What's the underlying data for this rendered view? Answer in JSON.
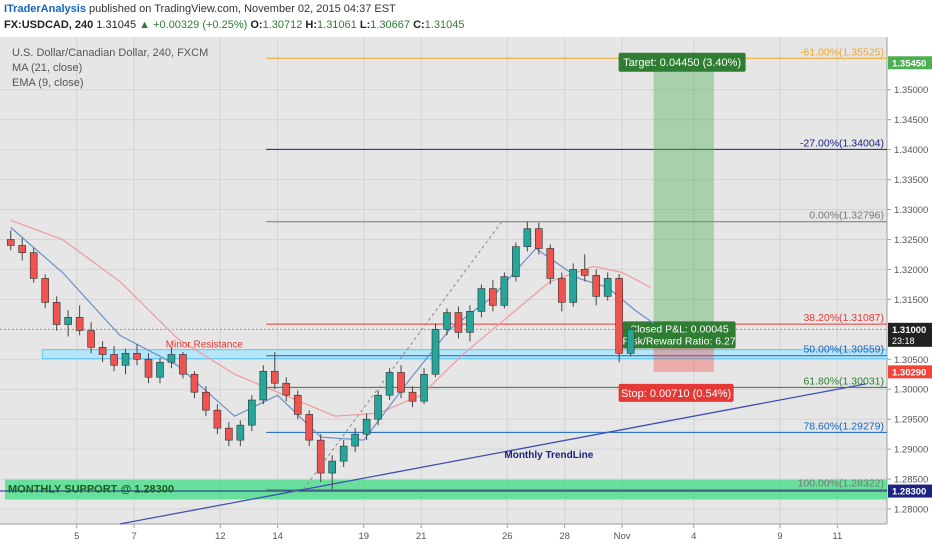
{
  "header": {
    "author": "ITraderAnalysis",
    "published": "published on TradingView.com, November 02, 2015 04:37 EST",
    "symbol": "FX:USDCAD, 240",
    "last": "1.31045",
    "change": "+0.00329 (+0.25%)",
    "o_label": "O:",
    "o": "1.30712",
    "h_label": "H:",
    "h": "1.31061",
    "l_label": "L:",
    "l": "1.30667",
    "c_label": "C:",
    "c": "1.31045"
  },
  "legend": {
    "name": "U.S. Dollar/Canadian Dollar, 240, FXCM",
    "ma": "MA (21, close)",
    "ema": "EMA (9, close)"
  },
  "colors": {
    "bull": "#26a69a",
    "bear": "#ef5350",
    "ma": "#ef9a9a",
    "ema": "#6a8fc7",
    "target": "#4caf50",
    "stop": "#f44336",
    "support": "#3ddc84",
    "trendline": "#3f51b5",
    "current": "#000000"
  },
  "chart_data": {
    "type": "candlestick",
    "ylim": [
      1.2775,
      1.3588
    ],
    "xlim": [
      0,
      29
    ],
    "x_ticks": [
      {
        "x": 2.5,
        "label": "5"
      },
      {
        "x": 4.5,
        "label": "7"
      },
      {
        "x": 7.5,
        "label": "12"
      },
      {
        "x": 9.5,
        "label": "14"
      },
      {
        "x": 12.5,
        "label": "19"
      },
      {
        "x": 14.5,
        "label": "21"
      },
      {
        "x": 17.5,
        "label": "26"
      },
      {
        "x": 19.5,
        "label": "28"
      },
      {
        "x": 21.5,
        "label": "Nov"
      },
      {
        "x": 24.0,
        "label": "4"
      },
      {
        "x": 27.0,
        "label": "9"
      },
      {
        "x": 29.0,
        "label": "11"
      }
    ],
    "y_ticks": [
      "1.35000",
      "1.34500",
      "1.34000",
      "1.33500",
      "1.33000",
      "1.32500",
      "1.32000",
      "1.31500",
      "1.30500",
      "1.30000",
      "1.29500",
      "1.29000",
      "1.28500",
      "1.28000"
    ],
    "price_tags": [
      {
        "price": 1.3545,
        "label": "1.35450",
        "color": "#4caf50"
      },
      {
        "price": 1.31,
        "label": "1.31000",
        "color": "#222222",
        "sub": "23:18"
      },
      {
        "price": 1.3029,
        "label": "1.30290",
        "color": "#f44336"
      },
      {
        "price": 1.283,
        "label": "1.28300",
        "color": "#1a237e"
      }
    ],
    "fibonacci": [
      {
        "level": "-61.00%",
        "price": 1.35525,
        "label": "-61.00%(1.35525)",
        "color": "#f5a623"
      },
      {
        "level": "-27.00%",
        "price": 1.34004,
        "label": "-27.00%(1.34004)",
        "color": "#1a237e"
      },
      {
        "level": "0.00%",
        "price": 1.32796,
        "label": "0.00%(1.32796)",
        "color": "#777777"
      },
      {
        "level": "38.20%",
        "price": 1.31087,
        "label": "38.20%(1.31087)",
        "color": "#e53935"
      },
      {
        "level": "50.00%",
        "price": 1.30559,
        "label": "50.00%(1.30559)",
        "color": "#1565c0"
      },
      {
        "level": "61.80%",
        "price": 1.30031,
        "label": "61.80%(1.30031)",
        "color": "#2e7d32"
      },
      {
        "level": "78.60%",
        "price": 1.29279,
        "label": "78.60%(1.29279)",
        "color": "#1565c0"
      },
      {
        "level": "100.00%",
        "price": 1.28322,
        "label": "100.00%(1.28322)",
        "color": "#777777"
      }
    ],
    "annotations": {
      "minor_resistance": "Minor Resistance",
      "monthly_trendline": "Monthly TrendLine",
      "monthly_support": "MONTHLY SUPPORT @ 1.28300",
      "target": "Target: 0.04450 (3.40%)",
      "closed_pnl": "Closed P&L: 0.00045",
      "risk_reward": "Risk/Reward Ratio: 6.27",
      "stop": "Stop: 0.00710 (0.54%)"
    },
    "position": {
      "entry": 1.31,
      "target": 1.3545,
      "stop": 1.3029,
      "x_start": 22.6,
      "x_end": 24.7
    },
    "support_zone": [
      1.2816,
      1.2849
    ],
    "resistance_zone": [
      1.3051,
      1.3066
    ],
    "trendline": {
      "x1": 4.0,
      "p1": 1.2775,
      "x2": 30.0,
      "p2": 1.3009
    },
    "dashed_line": {
      "x1": 10.4,
      "p1": 1.2833,
      "x2": 17.3,
      "p2": 1.3279
    },
    "candles": [
      {
        "x": 0.2,
        "o": 1.325,
        "h": 1.3265,
        "l": 1.3232,
        "c": 1.324
      },
      {
        "x": 0.6,
        "o": 1.324,
        "h": 1.3252,
        "l": 1.3215,
        "c": 1.3228
      },
      {
        "x": 1.0,
        "o": 1.3228,
        "h": 1.3236,
        "l": 1.3178,
        "c": 1.3185
      },
      {
        "x": 1.4,
        "o": 1.3185,
        "h": 1.3192,
        "l": 1.3135,
        "c": 1.3145
      },
      {
        "x": 1.8,
        "o": 1.3145,
        "h": 1.3155,
        "l": 1.3098,
        "c": 1.3108
      },
      {
        "x": 2.2,
        "o": 1.3108,
        "h": 1.3132,
        "l": 1.3088,
        "c": 1.312
      },
      {
        "x": 2.6,
        "o": 1.312,
        "h": 1.314,
        "l": 1.309,
        "c": 1.3098
      },
      {
        "x": 3.0,
        "o": 1.3098,
        "h": 1.3112,
        "l": 1.306,
        "c": 1.307
      },
      {
        "x": 3.4,
        "o": 1.307,
        "h": 1.308,
        "l": 1.3045,
        "c": 1.3058
      },
      {
        "x": 3.8,
        "o": 1.3058,
        "h": 1.3072,
        "l": 1.303,
        "c": 1.304
      },
      {
        "x": 4.2,
        "o": 1.304,
        "h": 1.3068,
        "l": 1.3025,
        "c": 1.306
      },
      {
        "x": 4.6,
        "o": 1.306,
        "h": 1.3075,
        "l": 1.304,
        "c": 1.305
      },
      {
        "x": 5.0,
        "o": 1.305,
        "h": 1.306,
        "l": 1.301,
        "c": 1.302
      },
      {
        "x": 5.4,
        "o": 1.302,
        "h": 1.3052,
        "l": 1.301,
        "c": 1.3045
      },
      {
        "x": 5.8,
        "o": 1.3045,
        "h": 1.307,
        "l": 1.3035,
        "c": 1.3058
      },
      {
        "x": 6.2,
        "o": 1.3058,
        "h": 1.3062,
        "l": 1.3018,
        "c": 1.3025
      },
      {
        "x": 6.6,
        "o": 1.3025,
        "h": 1.303,
        "l": 1.2985,
        "c": 1.2995
      },
      {
        "x": 7.0,
        "o": 1.2995,
        "h": 1.3005,
        "l": 1.2955,
        "c": 1.2965
      },
      {
        "x": 7.4,
        "o": 1.2965,
        "h": 1.2975,
        "l": 1.2925,
        "c": 1.2935
      },
      {
        "x": 7.8,
        "o": 1.2935,
        "h": 1.2945,
        "l": 1.2905,
        "c": 1.2915
      },
      {
        "x": 8.2,
        "o": 1.2915,
        "h": 1.2948,
        "l": 1.2905,
        "c": 1.294
      },
      {
        "x": 8.6,
        "o": 1.294,
        "h": 1.299,
        "l": 1.293,
        "c": 1.2982
      },
      {
        "x": 9.0,
        "o": 1.2982,
        "h": 1.304,
        "l": 1.2975,
        "c": 1.303
      },
      {
        "x": 9.4,
        "o": 1.303,
        "h": 1.3062,
        "l": 1.3,
        "c": 1.301
      },
      {
        "x": 9.8,
        "o": 1.301,
        "h": 1.302,
        "l": 1.298,
        "c": 1.299
      },
      {
        "x": 10.2,
        "o": 1.299,
        "h": 1.2998,
        "l": 1.295,
        "c": 1.2958
      },
      {
        "x": 10.6,
        "o": 1.2958,
        "h": 1.2965,
        "l": 1.2905,
        "c": 1.2915
      },
      {
        "x": 11.0,
        "o": 1.2915,
        "h": 1.2925,
        "l": 1.2845,
        "c": 1.286
      },
      {
        "x": 11.4,
        "o": 1.286,
        "h": 1.289,
        "l": 1.2833,
        "c": 1.288
      },
      {
        "x": 11.8,
        "o": 1.288,
        "h": 1.2915,
        "l": 1.287,
        "c": 1.2905
      },
      {
        "x": 12.2,
        "o": 1.2905,
        "h": 1.2935,
        "l": 1.2895,
        "c": 1.2925
      },
      {
        "x": 12.6,
        "o": 1.2925,
        "h": 1.296,
        "l": 1.2915,
        "c": 1.295
      },
      {
        "x": 13.0,
        "o": 1.295,
        "h": 1.2998,
        "l": 1.294,
        "c": 1.299
      },
      {
        "x": 13.4,
        "o": 1.299,
        "h": 1.3035,
        "l": 1.2982,
        "c": 1.3028
      },
      {
        "x": 13.8,
        "o": 1.3028,
        "h": 1.304,
        "l": 1.2985,
        "c": 1.2995
      },
      {
        "x": 14.2,
        "o": 1.2995,
        "h": 1.3005,
        "l": 1.297,
        "c": 1.298
      },
      {
        "x": 14.6,
        "o": 1.298,
        "h": 1.3035,
        "l": 1.2975,
        "c": 1.3025
      },
      {
        "x": 15.0,
        "o": 1.3025,
        "h": 1.311,
        "l": 1.302,
        "c": 1.31
      },
      {
        "x": 15.4,
        "o": 1.31,
        "h": 1.3135,
        "l": 1.309,
        "c": 1.3128
      },
      {
        "x": 15.8,
        "o": 1.3128,
        "h": 1.3138,
        "l": 1.3085,
        "c": 1.3095
      },
      {
        "x": 16.2,
        "o": 1.3095,
        "h": 1.314,
        "l": 1.308,
        "c": 1.313
      },
      {
        "x": 16.6,
        "o": 1.313,
        "h": 1.3175,
        "l": 1.312,
        "c": 1.3168
      },
      {
        "x": 17.0,
        "o": 1.3168,
        "h": 1.3182,
        "l": 1.313,
        "c": 1.314
      },
      {
        "x": 17.4,
        "o": 1.314,
        "h": 1.3195,
        "l": 1.3135,
        "c": 1.3188
      },
      {
        "x": 17.8,
        "o": 1.3188,
        "h": 1.3245,
        "l": 1.318,
        "c": 1.3238
      },
      {
        "x": 18.2,
        "o": 1.3238,
        "h": 1.328,
        "l": 1.323,
        "c": 1.3268
      },
      {
        "x": 18.6,
        "o": 1.3268,
        "h": 1.3278,
        "l": 1.3225,
        "c": 1.3235
      },
      {
        "x": 19.0,
        "o": 1.3235,
        "h": 1.3242,
        "l": 1.3175,
        "c": 1.3185
      },
      {
        "x": 19.4,
        "o": 1.3185,
        "h": 1.3195,
        "l": 1.313,
        "c": 1.3145
      },
      {
        "x": 19.8,
        "o": 1.3145,
        "h": 1.321,
        "l": 1.3138,
        "c": 1.32
      },
      {
        "x": 20.2,
        "o": 1.32,
        "h": 1.3225,
        "l": 1.318,
        "c": 1.319
      },
      {
        "x": 20.6,
        "o": 1.319,
        "h": 1.32,
        "l": 1.314,
        "c": 1.3155
      },
      {
        "x": 21.0,
        "o": 1.3155,
        "h": 1.3195,
        "l": 1.3148,
        "c": 1.3185
      },
      {
        "x": 21.4,
        "o": 1.3185,
        "h": 1.3192,
        "l": 1.3045,
        "c": 1.306
      },
      {
        "x": 21.8,
        "o": 1.306,
        "h": 1.3106,
        "l": 1.3055,
        "c": 1.31
      }
    ],
    "ma21": [
      [
        0.2,
        1.3282
      ],
      [
        2.0,
        1.325
      ],
      [
        4.0,
        1.318
      ],
      [
        6.0,
        1.3085
      ],
      [
        8.0,
        1.3025
      ],
      [
        10.0,
        1.2985
      ],
      [
        11.5,
        1.2955
      ],
      [
        13.0,
        1.296
      ],
      [
        14.5,
        1.299
      ],
      [
        16.0,
        1.306
      ],
      [
        17.5,
        1.312
      ],
      [
        19.0,
        1.318
      ],
      [
        20.5,
        1.3205
      ],
      [
        21.5,
        1.3195
      ],
      [
        22.5,
        1.317
      ]
    ],
    "ema9": [
      [
        0.2,
        1.327
      ],
      [
        2.0,
        1.3195
      ],
      [
        4.0,
        1.309
      ],
      [
        6.0,
        1.304
      ],
      [
        8.0,
        1.2955
      ],
      [
        9.5,
        1.299
      ],
      [
        11.0,
        1.292
      ],
      [
        12.5,
        1.2915
      ],
      [
        14.0,
        1.301
      ],
      [
        15.5,
        1.31
      ],
      [
        17.0,
        1.3155
      ],
      [
        18.5,
        1.3235
      ],
      [
        20.0,
        1.3185
      ],
      [
        21.0,
        1.317
      ],
      [
        22.0,
        1.313
      ],
      [
        22.6,
        1.311
      ]
    ]
  }
}
